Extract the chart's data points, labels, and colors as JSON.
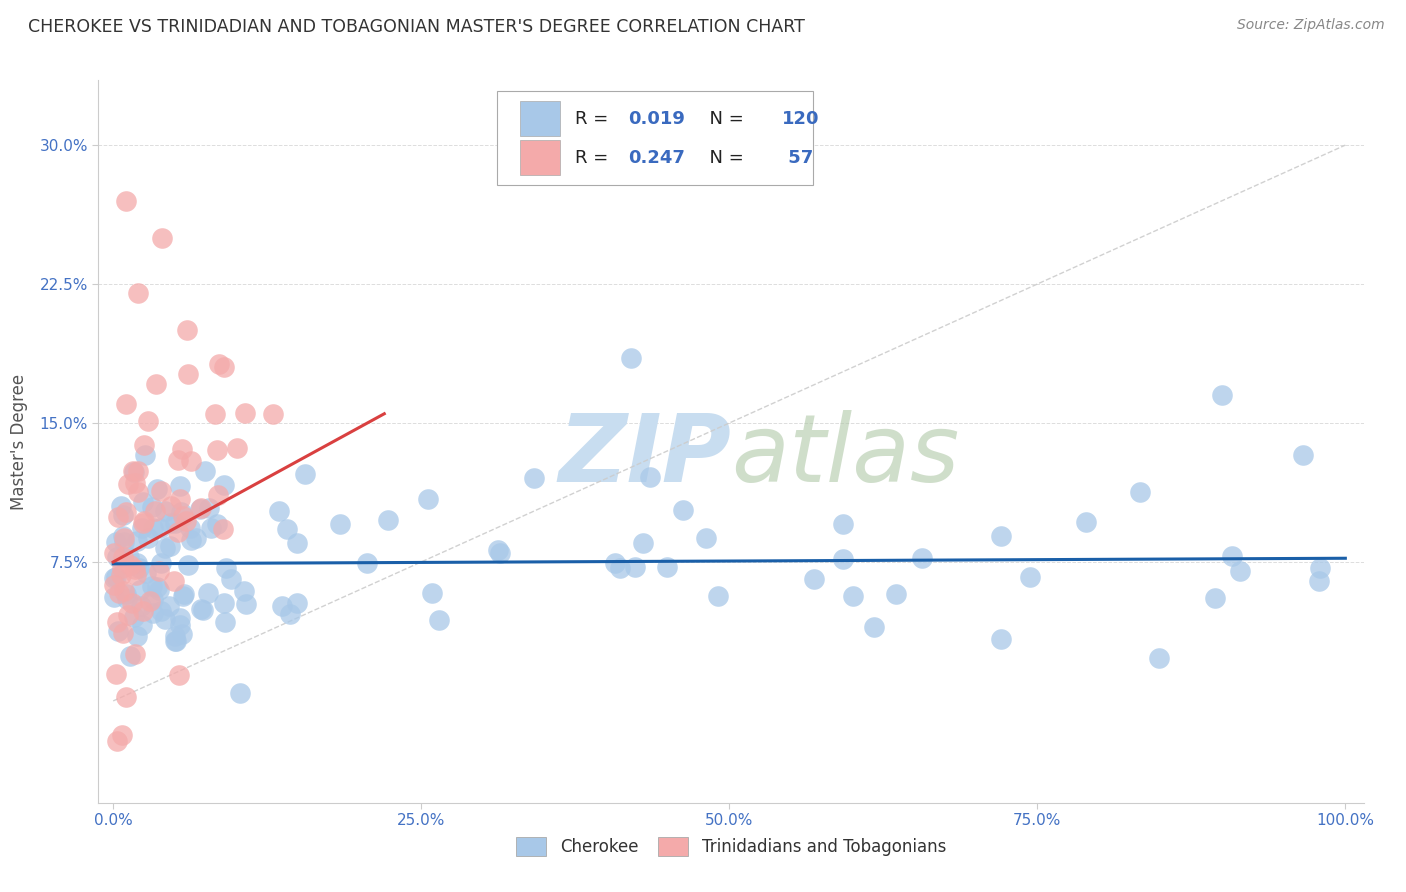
{
  "title": "CHEROKEE VS TRINIDADIAN AND TOBAGONIAN MASTER'S DEGREE CORRELATION CHART",
  "source": "Source: ZipAtlas.com",
  "ylabel": "Master's Degree",
  "blue_color": "#a8c8e8",
  "pink_color": "#f4aaaa",
  "blue_line_color": "#1a5fa8",
  "pink_line_color": "#d94040",
  "diag_color": "#cccccc",
  "background_color": "#ffffff",
  "grid_color": "#dddddd",
  "title_color": "#333333",
  "axis_color": "#555555",
  "tick_color": "#4472c4",
  "watermark_color": "#c8ddf0",
  "legend_labels": [
    "Cherokee",
    "Trinidadians and Tobagonians"
  ],
  "R_blue": "0.019",
  "N_blue": "120",
  "R_pink": "0.247",
  "N_pink": "57"
}
